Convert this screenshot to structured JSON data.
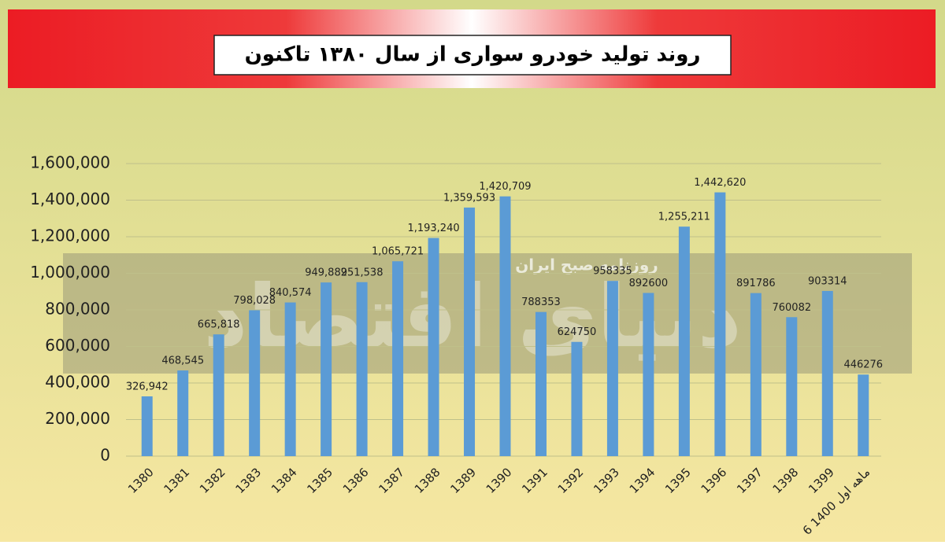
{
  "chart_data": {
    "type": "bar",
    "title": "روند تولید خودرو سواری از سال ۱۳۸۰ تاکنون",
    "watermark": "روزنامه صبح ایران",
    "logo": "دنیای اقتصاد",
    "categories": [
      "1380",
      "1381",
      "1382",
      "1383",
      "1384",
      "1385",
      "1386",
      "1387",
      "1388",
      "1389",
      "1390",
      "1391",
      "1392",
      "1393",
      "1394",
      "1395",
      "1396",
      "1397",
      "1398",
      "1399",
      "6 ماهه اول 1400"
    ],
    "values": [
      326942,
      468545,
      665818,
      798028,
      840574,
      949882,
      951538,
      1065721,
      1193240,
      1359593,
      1420709,
      788353,
      624750,
      958335,
      892600,
      1255211,
      1442620,
      891786,
      760082,
      903314,
      446276
    ],
    "value_labels": [
      "326,942",
      "468,545",
      "665,818",
      "798,028",
      "840,574",
      "949,882",
      "951,538",
      "1,065,721",
      "1,193,240",
      "1,359,593",
      "1,420,709",
      "788353",
      "624750",
      "958335",
      "892600",
      "1,255,211",
      "1,442,620",
      "891786",
      "760082",
      "903314",
      "446276"
    ],
    "color": "#5b9bd5",
    "ylim": [
      0,
      1600000
    ],
    "yticks": [
      0,
      {
        "value": 200000,
        "label": "200,000"
      },
      {
        "value": 400000,
        "label": "400,000"
      },
      {
        "value": 600000,
        "label": "600,000"
      },
      {
        "value": 800000,
        "label": "800,000"
      },
      {
        "value": 1000000,
        "label": "1,000,000"
      },
      {
        "value": 1200000,
        "label": "1,200,000"
      },
      {
        "value": 1400000,
        "label": "1,400,000"
      },
      {
        "value": 1600000,
        "label": "1,600,000"
      }
    ],
    "grid": true
  }
}
